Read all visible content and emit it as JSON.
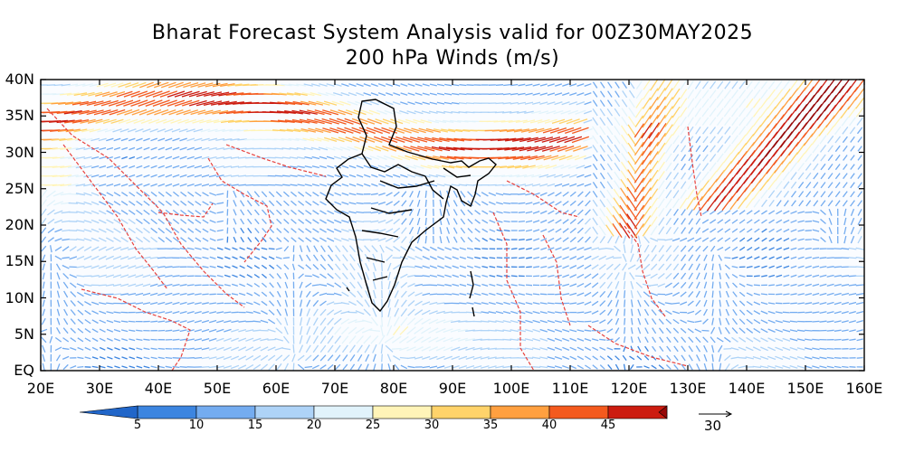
{
  "title_line1": "Bharat Forecast System Analysis valid for 00Z30MAY2025",
  "title_line2": "200 hPa Winds (m/s)",
  "lat_labels": [
    "40N",
    "35N",
    "30N",
    "25N",
    "20N",
    "15N",
    "10N",
    "5N",
    "EQ"
  ],
  "lon_labels": [
    "20E",
    "30E",
    "40E",
    "50E",
    "60E",
    "70E",
    "80E",
    "90E",
    "100E",
    "110E",
    "120E",
    "130E",
    "140E",
    "150E",
    "160E"
  ],
  "colorbar": {
    "levels": [
      "5",
      "10",
      "15",
      "20",
      "25",
      "30",
      "35",
      "40",
      "45"
    ],
    "colors": [
      "#2166c9",
      "#3c85e0",
      "#74acf0",
      "#aed3f7",
      "#e1f3fb",
      "#fff4b8",
      "#ffd36a",
      "#ffa040",
      "#f45a1e",
      "#cc1c10",
      "#960808"
    ]
  },
  "reference_vector": "30",
  "colors": {
    "coast": "#e8413c",
    "india": "#000000"
  }
}
